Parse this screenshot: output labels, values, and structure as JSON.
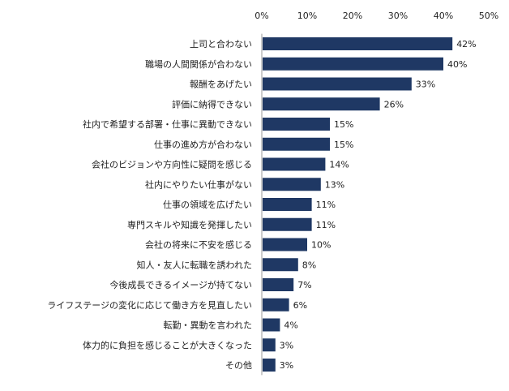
{
  "chart_data": {
    "type": "bar",
    "orientation": "horizontal",
    "categories": [
      "上司と合わない",
      "職場の人間関係が合わない",
      "報酬をあげたい",
      "評価に納得できない",
      "社内で希望する部署・仕事に異動できない",
      "仕事の進め方が合わない",
      "会社のビジョンや方向性に疑問を感じる",
      "社内にやりたい仕事がない",
      "仕事の領域を広げたい",
      "専門スキルや知識を発揮したい",
      "会社の将来に不安を感じる",
      "知人・友人に転職を誘われた",
      "今後成長できるイメージが持てない",
      "ライフステージの変化に応じて働き方を見直したい",
      "転勤・異動を言われた",
      "体力的に負担を感じることが大きくなった",
      "その他"
    ],
    "values": [
      42,
      40,
      33,
      26,
      15,
      15,
      14,
      13,
      11,
      11,
      10,
      8,
      7,
      6,
      4,
      3,
      3
    ],
    "value_labels": [
      "42%",
      "40%",
      "33%",
      "26%",
      "15%",
      "15%",
      "14%",
      "13%",
      "11%",
      "11%",
      "10%",
      "8%",
      "7%",
      "6%",
      "4%",
      "3%",
      "3%"
    ],
    "xlim": [
      0,
      50
    ],
    "x_ticks": [
      0,
      10,
      20,
      30,
      40,
      50
    ],
    "x_tick_labels": [
      "0%",
      "10%",
      "20%",
      "30%",
      "40%",
      "50%"
    ],
    "axis_position": "top",
    "grid": false,
    "bar_color": "#1f3864",
    "title": "",
    "xlabel": "",
    "ylabel": ""
  }
}
